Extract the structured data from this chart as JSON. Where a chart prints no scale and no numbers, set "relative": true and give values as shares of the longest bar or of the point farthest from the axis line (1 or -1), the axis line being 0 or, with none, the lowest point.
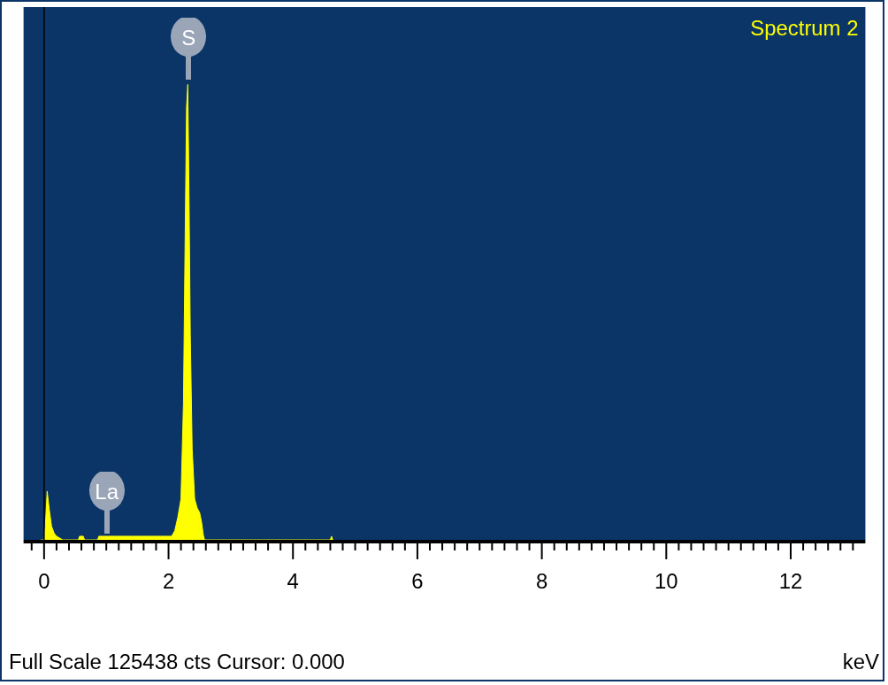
{
  "chart_data": {
    "type": "area",
    "relative": true,
    "xlabel": "keV",
    "x": [
      -0.05,
      0.0,
      0.02,
      0.05,
      0.08,
      0.12,
      0.16,
      0.2,
      0.25,
      0.3,
      0.55,
      0.57,
      0.63,
      0.65,
      0.86,
      0.88,
      1.0,
      2.05,
      2.1,
      2.15,
      2.2,
      2.24,
      2.27,
      2.29,
      2.31,
      2.33,
      2.35,
      2.38,
      2.42,
      2.46,
      2.5,
      2.53,
      2.56,
      2.58,
      4.6,
      4.62,
      4.64
    ],
    "series": [
      {
        "name": "Spectrum 2",
        "color": "#ffff00",
        "values": [
          0,
          0,
          0.03,
          0.107,
          0.07,
          0.03,
          0.015,
          0.008,
          0.004,
          0,
          0,
          0.008,
          0.008,
          0,
          0,
          0.008,
          0.008,
          0.008,
          0.02,
          0.05,
          0.09,
          0.3,
          0.7,
          0.95,
          1,
          0.75,
          0.45,
          0.2,
          0.09,
          0.07,
          0.06,
          0.04,
          0.01,
          0,
          0,
          0.008,
          0
        ]
      }
    ],
    "xlim": [
      -0.33,
      13.2
    ],
    "xticks": [
      {
        "value": -0.2,
        "label": null
      },
      0,
      {
        "value": 0.2,
        "label": null
      },
      {
        "value": 0.4,
        "label": null
      },
      {
        "value": 0.6,
        "label": null
      },
      {
        "value": 0.8,
        "label": null
      },
      {
        "value": 1,
        "label": null
      },
      {
        "value": 1.2,
        "label": null
      },
      {
        "value": 1.4,
        "label": null
      },
      {
        "value": 1.6,
        "label": null
      },
      {
        "value": 1.8,
        "label": null
      },
      2,
      {
        "value": 2.2,
        "label": null
      },
      {
        "value": 2.4,
        "label": null
      },
      {
        "value": 2.6,
        "label": null
      },
      {
        "value": 2.8,
        "label": null
      },
      {
        "value": 3,
        "label": null
      },
      {
        "value": 3.2,
        "label": null
      },
      {
        "value": 3.4,
        "label": null
      },
      {
        "value": 3.6,
        "label": null
      },
      {
        "value": 3.8,
        "label": null
      },
      4,
      {
        "value": 4.2,
        "label": null
      },
      {
        "value": 4.4,
        "label": null
      },
      {
        "value": 4.6,
        "label": null
      },
      {
        "value": 4.8,
        "label": null
      },
      {
        "value": 5,
        "label": null
      },
      {
        "value": 5.2,
        "label": null
      },
      {
        "value": 5.4,
        "label": null
      },
      {
        "value": 5.6,
        "label": null
      },
      {
        "value": 5.8,
        "label": null
      },
      6,
      {
        "value": 6.2,
        "label": null
      },
      {
        "value": 6.4,
        "label": null
      },
      {
        "value": 6.6,
        "label": null
      },
      {
        "value": 6.8,
        "label": null
      },
      {
        "value": 7,
        "label": null
      },
      {
        "value": 7.2,
        "label": null
      },
      {
        "value": 7.4,
        "label": null
      },
      {
        "value": 7.6,
        "label": null
      },
      {
        "value": 7.8,
        "label": null
      },
      8,
      {
        "value": 8.2,
        "label": null
      },
      {
        "value": 8.4,
        "label": null
      },
      {
        "value": 8.6,
        "label": null
      },
      {
        "value": 8.8,
        "label": null
      },
      {
        "value": 9,
        "label": null
      },
      {
        "value": 9.2,
        "label": null
      },
      {
        "value": 9.4,
        "label": null
      },
      {
        "value": 9.6,
        "label": null
      },
      {
        "value": 9.8,
        "label": null
      },
      10,
      {
        "value": 10.2,
        "label": null
      },
      {
        "value": 10.4,
        "label": null
      },
      {
        "value": 10.6,
        "label": null
      },
      {
        "value": 10.8,
        "label": null
      },
      {
        "value": 11,
        "label": null
      },
      {
        "value": 11.2,
        "label": null
      },
      {
        "value": 11.4,
        "label": null
      },
      {
        "value": 11.6,
        "label": null
      },
      {
        "value": 11.8,
        "label": null
      },
      12,
      {
        "value": 12.2,
        "label": null
      },
      {
        "value": 12.4,
        "label": null
      },
      {
        "value": 12.6,
        "label": null
      },
      {
        "value": 12.8,
        "label": null
      },
      {
        "value": 13,
        "label": null
      }
    ],
    "ref_lines": [
      {
        "axis": "x",
        "value": 0,
        "color": "#000000"
      }
    ],
    "legend": "top right",
    "annotations": [
      {
        "text": "S",
        "x": 2.31,
        "y": 1
      },
      {
        "text": "La",
        "x": 1.0,
        "y": 0.008
      },
      "Full Scale 125438 cts Cursor: 0.000"
    ]
  }
}
